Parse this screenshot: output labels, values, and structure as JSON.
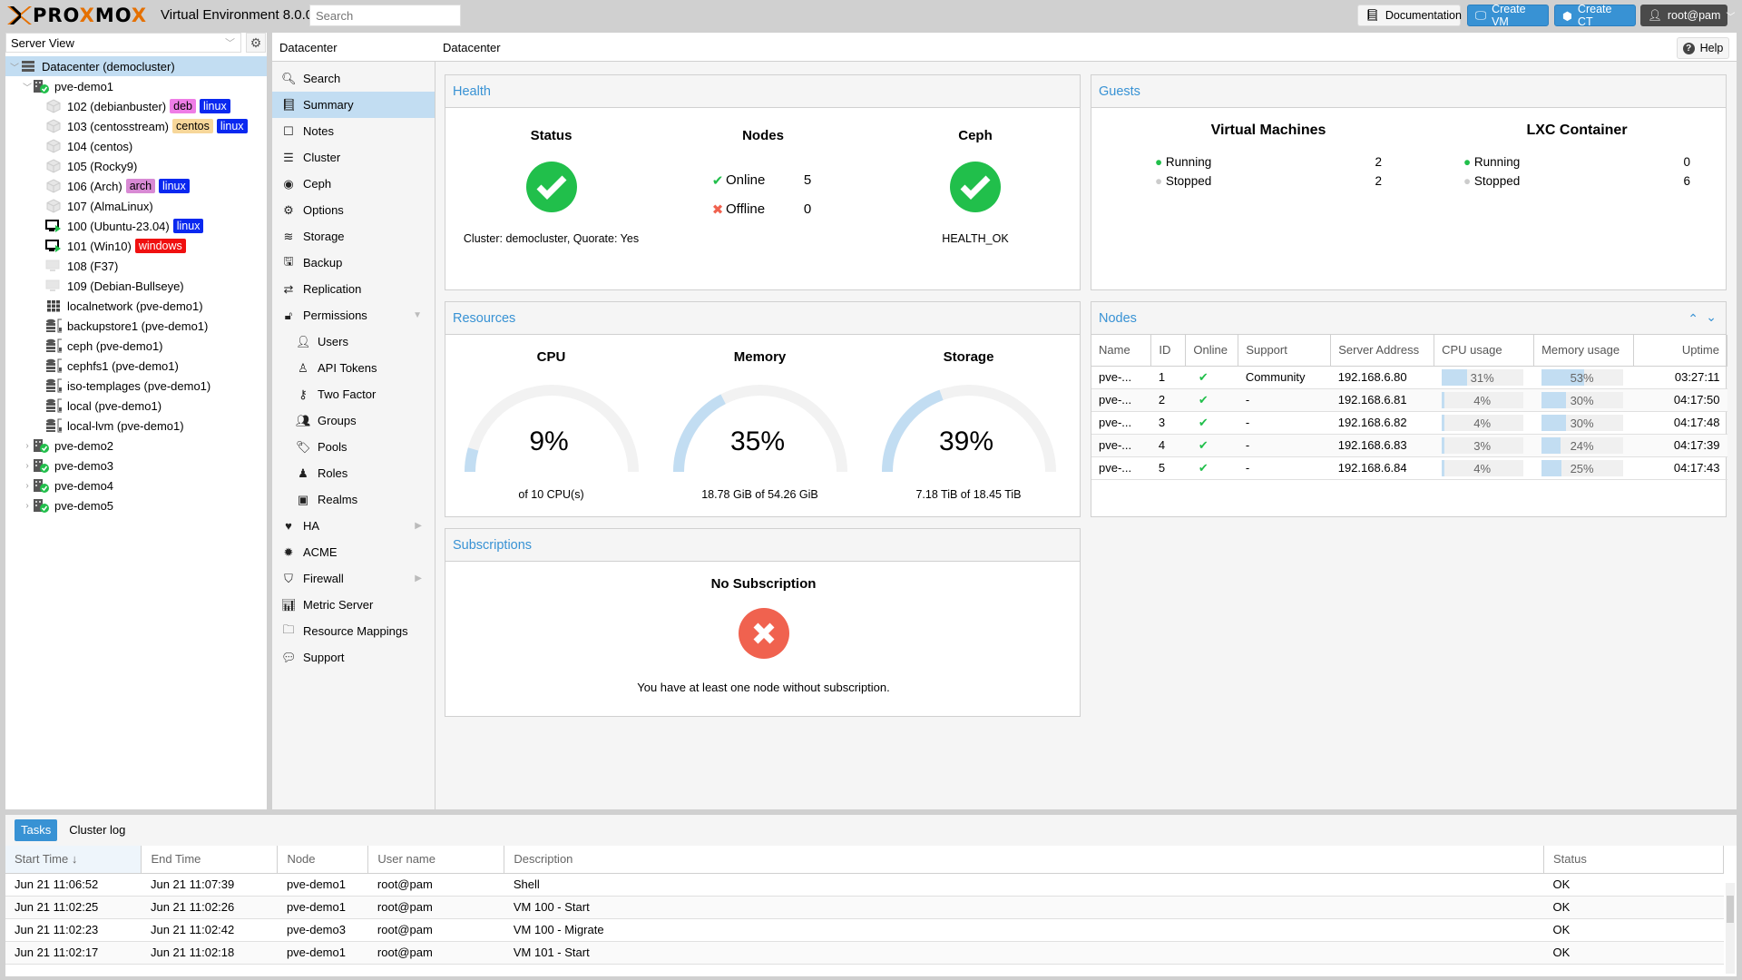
{
  "header": {
    "logo_text": "PROXMOX",
    "product": "Virtual Environment 8.0.0",
    "search_placeholder": "Search",
    "documentation": "Documentation",
    "create_vm": "Create VM",
    "create_ct": "Create CT",
    "user": "root@pam"
  },
  "tree": {
    "view": "Server View",
    "items": [
      {
        "label": "Datacenter (democluster)",
        "level": 0,
        "type": "datacenter",
        "expanded": true,
        "selected": true,
        "tags": []
      },
      {
        "label": "pve-demo1",
        "level": 1,
        "type": "node",
        "expanded": true,
        "tags": []
      },
      {
        "label": "102 (debianbuster)",
        "level": 2,
        "type": "ct",
        "tags": [
          {
            "text": "deb",
            "bg": "#ee7de6",
            "fg": "#000"
          },
          {
            "text": "linux",
            "bg": "#0a28f0",
            "fg": "#fff"
          }
        ]
      },
      {
        "label": "103 (centosstream)",
        "level": 2,
        "type": "ct",
        "tags": [
          {
            "text": "centos",
            "bg": "#f7d79a",
            "fg": "#000"
          },
          {
            "text": "linux",
            "bg": "#0a28f0",
            "fg": "#fff"
          }
        ]
      },
      {
        "label": "104 (centos)",
        "level": 2,
        "type": "ct",
        "tags": []
      },
      {
        "label": "105 (Rocky9)",
        "level": 2,
        "type": "ct",
        "tags": []
      },
      {
        "label": "106 (Arch)",
        "level": 2,
        "type": "ct",
        "tags": [
          {
            "text": "arch",
            "bg": "#d88ad4",
            "fg": "#000"
          },
          {
            "text": "linux",
            "bg": "#0a28f0",
            "fg": "#fff"
          }
        ]
      },
      {
        "label": "107 (AlmaLinux)",
        "level": 2,
        "type": "ct",
        "tags": []
      },
      {
        "label": "100 (Ubuntu-23.04)",
        "level": 2,
        "type": "vm-running",
        "tags": [
          {
            "text": "linux",
            "bg": "#0a28f0",
            "fg": "#fff"
          }
        ]
      },
      {
        "label": "101 (Win10)",
        "level": 2,
        "type": "vm-running",
        "tags": [
          {
            "text": "windows",
            "bg": "#f01010",
            "fg": "#fff"
          }
        ]
      },
      {
        "label": "108 (F37)",
        "level": 2,
        "type": "vm-stopped",
        "tags": []
      },
      {
        "label": "109 (Debian-Bullseye)",
        "level": 2,
        "type": "vm-stopped",
        "tags": []
      },
      {
        "label": "localnetwork (pve-demo1)",
        "level": 2,
        "type": "network",
        "tags": []
      },
      {
        "label": "backupstore1 (pve-demo1)",
        "level": 2,
        "type": "storage",
        "tags": []
      },
      {
        "label": "ceph (pve-demo1)",
        "level": 2,
        "type": "storage",
        "tags": []
      },
      {
        "label": "cephfs1 (pve-demo1)",
        "level": 2,
        "type": "storage",
        "tags": []
      },
      {
        "label": "iso-templages (pve-demo1)",
        "level": 2,
        "type": "storage",
        "tags": []
      },
      {
        "label": "local (pve-demo1)",
        "level": 2,
        "type": "storage",
        "tags": []
      },
      {
        "label": "local-lvm (pve-demo1)",
        "level": 2,
        "type": "storage",
        "tags": []
      },
      {
        "label": "pve-demo2",
        "level": 1,
        "type": "node",
        "expanded": false,
        "tags": []
      },
      {
        "label": "pve-demo3",
        "level": 1,
        "type": "node",
        "expanded": false,
        "tags": []
      },
      {
        "label": "pve-demo4",
        "level": 1,
        "type": "node",
        "expanded": false,
        "tags": []
      },
      {
        "label": "pve-demo5",
        "level": 1,
        "type": "node",
        "expanded": false,
        "tags": []
      }
    ]
  },
  "content": {
    "title": "Datacenter",
    "help": "Help"
  },
  "nav": [
    {
      "label": "Search",
      "icon": "search-icon",
      "glyph": "🔍︎",
      "sub": false
    },
    {
      "label": "Summary",
      "icon": "book-icon",
      "glyph": "📘︎",
      "sub": false,
      "active": true
    },
    {
      "label": "Notes",
      "icon": "note-icon",
      "glyph": "☐",
      "sub": false
    },
    {
      "label": "Cluster",
      "icon": "server-icon",
      "glyph": "☰",
      "sub": false
    },
    {
      "label": "Ceph",
      "icon": "ceph-icon",
      "glyph": "◉",
      "sub": false
    },
    {
      "label": "Options",
      "icon": "gear-icon",
      "glyph": "⚙",
      "sub": false
    },
    {
      "label": "Storage",
      "icon": "database-icon",
      "glyph": "≋",
      "sub": false
    },
    {
      "label": "Backup",
      "icon": "floppy-icon",
      "glyph": "🖫",
      "sub": false
    },
    {
      "label": "Replication",
      "icon": "retweet-icon",
      "glyph": "⇄",
      "sub": false
    },
    {
      "label": "Permissions",
      "icon": "unlock-icon",
      "glyph": "🔓︎",
      "sub": false,
      "arrow": "▼"
    },
    {
      "label": "Users",
      "icon": "user-icon",
      "glyph": "👤︎",
      "sub": true
    },
    {
      "label": "API Tokens",
      "icon": "user-outline-icon",
      "glyph": "♙",
      "sub": true
    },
    {
      "label": "Two Factor",
      "icon": "key-icon",
      "glyph": "⚷",
      "sub": true
    },
    {
      "label": "Groups",
      "icon": "users-icon",
      "glyph": "👥︎",
      "sub": true
    },
    {
      "label": "Pools",
      "icon": "tags-icon",
      "glyph": "🏷︎",
      "sub": true
    },
    {
      "label": "Roles",
      "icon": "male-icon",
      "glyph": "♟",
      "sub": true
    },
    {
      "label": "Realms",
      "icon": "address-book-icon",
      "glyph": "▣",
      "sub": true
    },
    {
      "label": "HA",
      "icon": "heartbeat-icon",
      "glyph": "♥",
      "sub": false,
      "arrow": "▶"
    },
    {
      "label": "ACME",
      "icon": "certificate-icon",
      "glyph": "✹",
      "sub": false
    },
    {
      "label": "Firewall",
      "icon": "shield-icon",
      "glyph": "⛉",
      "sub": false,
      "arrow": "▶"
    },
    {
      "label": "Metric Server",
      "icon": "bar-chart-icon",
      "glyph": "📊︎",
      "sub": false
    },
    {
      "label": "Resource Mappings",
      "icon": "folder-icon",
      "glyph": "🗀",
      "sub": false
    },
    {
      "label": "Support",
      "icon": "comments-icon",
      "glyph": "💬︎",
      "sub": false
    }
  ],
  "health": {
    "title": "Health",
    "status_title": "Status",
    "status_text": "Cluster: democluster, Quorate: Yes",
    "nodes_title": "Nodes",
    "online_label": "Online",
    "online_count": "5",
    "offline_label": "Offline",
    "offline_count": "0",
    "ceph_title": "Ceph",
    "ceph_text": "HEALTH_OK"
  },
  "guests": {
    "title": "Guests",
    "vm_title": "Virtual Machines",
    "vm_running_label": "Running",
    "vm_running": "2",
    "vm_stopped_label": "Stopped",
    "vm_stopped": "2",
    "lxc_title": "LXC Container",
    "lxc_running_label": "Running",
    "lxc_running": "0",
    "lxc_stopped_label": "Stopped",
    "lxc_stopped": "6"
  },
  "resources": {
    "title": "Resources",
    "cpu": {
      "title": "CPU",
      "percent": 9,
      "value": "9%",
      "sub": "of 10 CPU(s)"
    },
    "memory": {
      "title": "Memory",
      "percent": 35,
      "value": "35%",
      "sub": "18.78 GiB of 54.26 GiB"
    },
    "storage": {
      "title": "Storage",
      "percent": 39,
      "value": "39%",
      "sub": "7.18 TiB of 18.45 TiB"
    }
  },
  "nodes": {
    "title": "Nodes",
    "columns": [
      "Name",
      "ID",
      "Online",
      "Support",
      "Server Address",
      "CPU usage",
      "Memory usage",
      "Uptime"
    ],
    "rows": [
      {
        "name": "pve-...",
        "id": "1",
        "online": "✔",
        "support": "Community",
        "address": "192.168.6.80",
        "cpu": 31,
        "cpu_label": "31%",
        "mem": 53,
        "mem_label": "53%",
        "uptime": "03:27:11"
      },
      {
        "name": "pve-...",
        "id": "2",
        "online": "✔",
        "support": "-",
        "address": "192.168.6.81",
        "cpu": 4,
        "cpu_label": "4%",
        "mem": 30,
        "mem_label": "30%",
        "uptime": "04:17:50"
      },
      {
        "name": "pve-...",
        "id": "3",
        "online": "✔",
        "support": "-",
        "address": "192.168.6.82",
        "cpu": 4,
        "cpu_label": "4%",
        "mem": 30,
        "mem_label": "30%",
        "uptime": "04:17:48"
      },
      {
        "name": "pve-...",
        "id": "4",
        "online": "✔",
        "support": "-",
        "address": "192.168.6.83",
        "cpu": 3,
        "cpu_label": "3%",
        "mem": 24,
        "mem_label": "24%",
        "uptime": "04:17:39"
      },
      {
        "name": "pve-...",
        "id": "5",
        "online": "✔",
        "support": "-",
        "address": "192.168.6.84",
        "cpu": 4,
        "cpu_label": "4%",
        "mem": 25,
        "mem_label": "25%",
        "uptime": "04:17:43"
      }
    ]
  },
  "subscriptions": {
    "title": "Subscriptions",
    "heading": "No Subscription",
    "text": "You have at least one node without subscription."
  },
  "tasks": {
    "tabs": [
      "Tasks",
      "Cluster log"
    ],
    "columns": [
      "Start Time ↓",
      "End Time",
      "Node",
      "User name",
      "Description",
      "Status"
    ],
    "rows": [
      [
        "Jun 21 11:06:52",
        "Jun 21 11:07:39",
        "pve-demo1",
        "root@pam",
        "Shell",
        "OK"
      ],
      [
        "Jun 21 11:02:25",
        "Jun 21 11:02:26",
        "pve-demo1",
        "root@pam",
        "VM 100 - Start",
        "OK"
      ],
      [
        "Jun 21 11:02:23",
        "Jun 21 11:02:42",
        "pve-demo3",
        "root@pam",
        "VM 100 - Migrate",
        "OK"
      ],
      [
        "Jun 21 11:02:17",
        "Jun 21 11:02:18",
        "pve-demo1",
        "root@pam",
        "VM 101 - Start",
        "OK"
      ]
    ]
  },
  "colors": {
    "accent": "#3892d4",
    "ok": "#21bf4b",
    "error": "#f0624f",
    "selected": "#c2ddf2",
    "logo_orange": "#e57000"
  }
}
